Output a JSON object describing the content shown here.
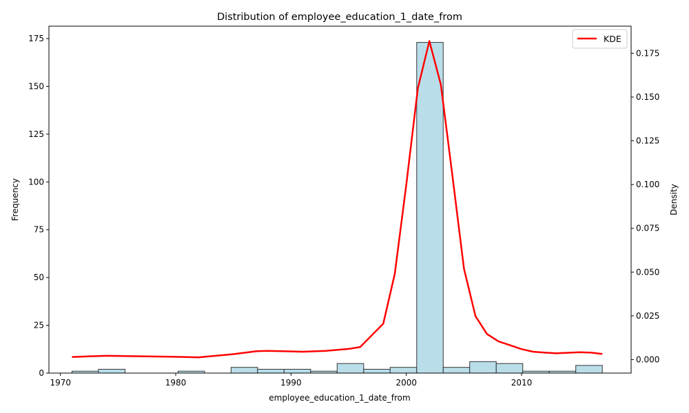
{
  "chart_data": {
    "type": "bar",
    "title": "Distribution of employee_education_1_date_from",
    "xlabel": "employee_education_1_date_from",
    "ylabel": "Frequency",
    "y2label": "Density",
    "xlim": [
      1969,
      2019.5
    ],
    "ylim": [
      0,
      181.5
    ],
    "y2lim": [
      -0.0077,
      0.1905
    ],
    "xticks": [
      1970,
      1980,
      1990,
      2000,
      2010
    ],
    "yticks": [
      0,
      25,
      50,
      75,
      100,
      125,
      150,
      175
    ],
    "y2ticks": [
      0.0,
      0.025,
      0.05,
      0.075,
      0.1,
      0.125,
      0.15,
      0.175
    ],
    "y2tick_labels": [
      "0.000",
      "0.025",
      "0.050",
      "0.075",
      "0.100",
      "0.125",
      "0.150",
      "0.175"
    ],
    "grid": false,
    "bar_color": "#add8e6",
    "bar_edge_color": "#333333",
    "kde_color": "#ff0000",
    "legend": {
      "position": "top-right",
      "entries": [
        "KDE"
      ]
    },
    "bins": [
      {
        "x0": 1971.0,
        "x1": 1973.3,
        "count": 1
      },
      {
        "x0": 1973.3,
        "x1": 1975.6,
        "count": 2
      },
      {
        "x0": 1975.6,
        "x1": 1977.9,
        "count": 0
      },
      {
        "x0": 1977.9,
        "x1": 1980.2,
        "count": 0
      },
      {
        "x0": 1980.2,
        "x1": 1982.5,
        "count": 1
      },
      {
        "x0": 1982.5,
        "x1": 1984.8,
        "count": 0
      },
      {
        "x0": 1984.8,
        "x1": 1987.1,
        "count": 3
      },
      {
        "x0": 1987.1,
        "x1": 1989.4,
        "count": 2
      },
      {
        "x0": 1989.4,
        "x1": 1991.7,
        "count": 2
      },
      {
        "x0": 1991.7,
        "x1": 1994.0,
        "count": 1
      },
      {
        "x0": 1994.0,
        "x1": 1996.3,
        "count": 5
      },
      {
        "x0": 1996.3,
        "x1": 1998.6,
        "count": 2
      },
      {
        "x0": 1998.6,
        "x1": 2000.9,
        "count": 3
      },
      {
        "x0": 2000.9,
        "x1": 2003.2,
        "count": 173
      },
      {
        "x0": 2003.2,
        "x1": 2005.5,
        "count": 3
      },
      {
        "x0": 2005.5,
        "x1": 2007.8,
        "count": 6
      },
      {
        "x0": 2007.8,
        "x1": 2010.1,
        "count": 5
      },
      {
        "x0": 2010.1,
        "x1": 2012.4,
        "count": 1
      },
      {
        "x0": 2012.4,
        "x1": 2014.7,
        "count": 1
      },
      {
        "x0": 2014.7,
        "x1": 2017.0,
        "count": 4
      }
    ],
    "series": [
      {
        "name": "KDE",
        "x": [
          1971,
          1974,
          1976,
          1979,
          1982,
          1985,
          1987,
          1988,
          1990,
          1991,
          1993,
          1995,
          1996,
          1998,
          1999,
          2000,
          2001,
          2002,
          2003,
          2004,
          2005,
          2006,
          2007,
          2008,
          2009,
          2010,
          2011,
          2012,
          2013,
          2015,
          2016,
          2017
        ],
        "y": [
          0.0015,
          0.0022,
          0.002,
          0.0017,
          0.0013,
          0.0031,
          0.0048,
          0.005,
          0.0047,
          0.0045,
          0.005,
          0.0061,
          0.0072,
          0.0205,
          0.049,
          0.1,
          0.155,
          0.182,
          0.157,
          0.105,
          0.052,
          0.0248,
          0.0146,
          0.0104,
          0.0082,
          0.006,
          0.0045,
          0.004,
          0.0036,
          0.0042,
          0.004,
          0.0032
        ]
      }
    ]
  }
}
